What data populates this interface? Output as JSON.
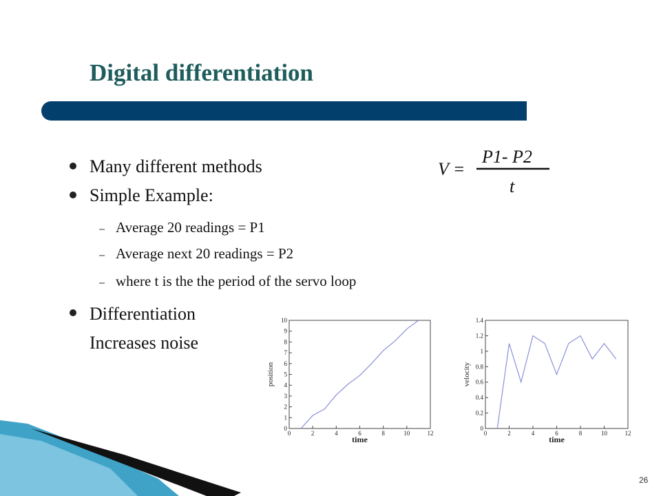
{
  "slide": {
    "title": "Digital differentiation",
    "bullets": [
      "Many different methods",
      "Simple Example:"
    ],
    "sub_bullets": [
      "Average 20 readings = P1",
      "Average next 20 readings = P2",
      "where t is the the period of the servo loop"
    ],
    "bullet3_lines": [
      "Differentiation",
      "Increases noise"
    ],
    "formula": {
      "lhs": "V =",
      "numerator": "P1- P2",
      "denominator": "t"
    },
    "page_number": "26"
  },
  "chart_data": [
    {
      "type": "line",
      "x_label": "time",
      "y_label": "position",
      "x": [
        1,
        2,
        3,
        4,
        5,
        6,
        7,
        8,
        9,
        10,
        11
      ],
      "series": [
        {
          "color": "#8a8fd8",
          "values": [
            0,
            1.2,
            1.8,
            3.1,
            4.1,
            4.9,
            6.0,
            7.2,
            8.1,
            9.2,
            10
          ]
        }
      ],
      "xlim": [
        0,
        12
      ],
      "xticks": [
        0,
        2,
        4,
        6,
        8,
        10,
        12
      ],
      "ylim": [
        0,
        10
      ],
      "yticks": [
        0,
        1,
        2,
        3,
        4,
        5,
        6,
        7,
        8,
        9,
        10
      ]
    },
    {
      "type": "line",
      "x_label": "time",
      "y_label": "velocity",
      "x": [
        1,
        2,
        3,
        4,
        5,
        6,
        7,
        8,
        9,
        10,
        11
      ],
      "series": [
        {
          "color": "#8a8fd8",
          "values": [
            0,
            1.1,
            0.6,
            1.2,
            1.1,
            0.7,
            1.1,
            1.2,
            0.9,
            1.1,
            0.9
          ]
        }
      ],
      "xlim": [
        0,
        12
      ],
      "xticks": [
        0,
        2,
        4,
        6,
        8,
        10,
        12
      ],
      "ylim": [
        0,
        1.4
      ],
      "yticks": [
        0,
        0.2,
        0.4,
        0.6,
        0.8,
        1,
        1.2,
        1.4
      ]
    }
  ]
}
